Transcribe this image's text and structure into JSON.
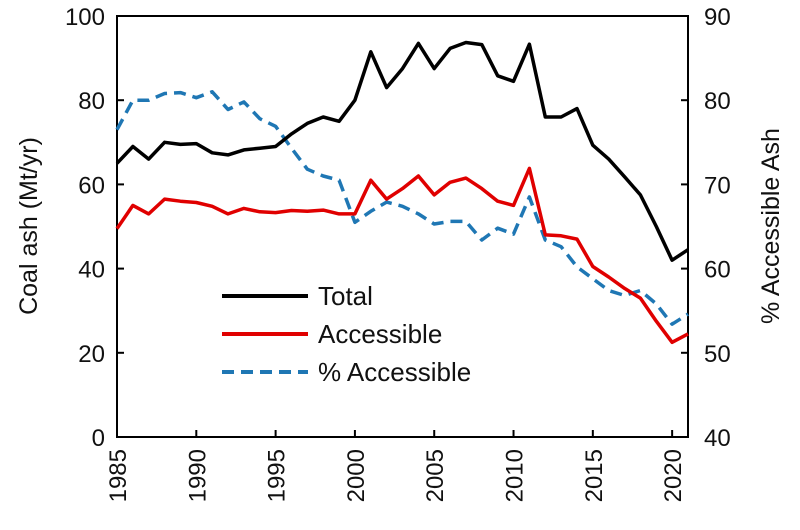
{
  "chart_data": {
    "type": "line",
    "title": "",
    "xlabel": "",
    "ylabel": "Coal ash (Mt/yr)",
    "y2label": "% Accessible Ash",
    "xlim": [
      1985,
      2021
    ],
    "ylim": [
      0,
      100
    ],
    "y2lim": [
      40,
      90
    ],
    "xticks": [
      "1985",
      "1990",
      "1995",
      "2000",
      "2005",
      "2010",
      "2015",
      "2020"
    ],
    "yticks": [
      "0",
      "20",
      "40",
      "60",
      "80",
      "100"
    ],
    "y2ticks": [
      "40",
      "50",
      "60",
      "70",
      "80",
      "90"
    ],
    "legend_position": "lower-center",
    "x": [
      1985,
      1986,
      1987,
      1988,
      1989,
      1990,
      1991,
      1992,
      1993,
      1994,
      1995,
      1996,
      1997,
      1998,
      1999,
      2000,
      2001,
      2002,
      2003,
      2004,
      2005,
      2006,
      2007,
      2008,
      2009,
      2010,
      2011,
      2012,
      2013,
      2014,
      2015,
      2016,
      2017,
      2018,
      2019,
      2020,
      2021
    ],
    "series": [
      {
        "name": "Total",
        "axis": "left",
        "color": "#000000",
        "style": "solid",
        "values": [
          65,
          69,
          66,
          70,
          69.5,
          69.7,
          67.5,
          67,
          68.2,
          68.6,
          69,
          72,
          74.5,
          76,
          75,
          80,
          91.5,
          83,
          87.5,
          93.5,
          87.5,
          92.3,
          93.7,
          93.2,
          85.8,
          84.5,
          93.3,
          76,
          76,
          78,
          69.3,
          66,
          61.8,
          57.5,
          50,
          42,
          44.5
        ]
      },
      {
        "name": "Accessible",
        "axis": "left",
        "color": "#e00000",
        "style": "solid",
        "values": [
          49.5,
          55,
          53,
          56.5,
          56,
          55.7,
          54.8,
          53,
          54.3,
          53.5,
          53.3,
          53.8,
          53.6,
          53.9,
          53,
          53,
          61,
          56.5,
          59,
          62,
          57.5,
          60.5,
          61.5,
          59,
          56,
          55,
          63.8,
          48,
          47.8,
          47,
          40.5,
          38,
          35.3,
          33,
          27.5,
          22.5,
          24.5
        ]
      },
      {
        "name": "% Accessible",
        "axis": "right",
        "color": "#1f77b4",
        "style": "dashed",
        "values": [
          76.5,
          80,
          80,
          80.8,
          80.9,
          80.3,
          81,
          78.9,
          79.8,
          77.8,
          76.9,
          74.3,
          71.8,
          71,
          70.5,
          65.5,
          66.8,
          67.9,
          67.4,
          66.5,
          65.3,
          65.6,
          65.6,
          63.4,
          64.8,
          64.1,
          68.5,
          63.4,
          62.6,
          60.2,
          58.8,
          57.4,
          56.8,
          57.4,
          55.8,
          53.4,
          54.6
        ]
      }
    ]
  }
}
